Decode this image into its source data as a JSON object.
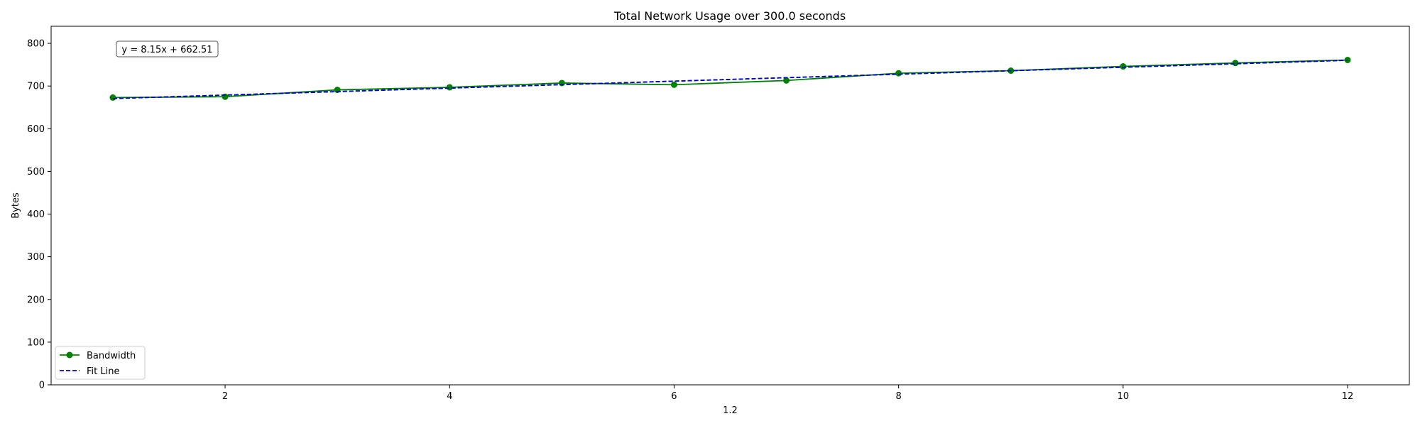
{
  "chart_data": {
    "type": "line",
    "title": "Total Network Usage over 300.0 seconds",
    "xlabel": "1.2",
    "ylabel": "Bytes",
    "xlim": [
      0.45,
      12.55
    ],
    "ylim": [
      0,
      840
    ],
    "xticks": [
      2,
      4,
      6,
      8,
      10,
      12
    ],
    "yticks": [
      0,
      100,
      200,
      300,
      400,
      500,
      600,
      700,
      800
    ],
    "grid": false,
    "legend": "lower-left",
    "annotation": "y = 8.15x + 662.51",
    "series": [
      {
        "name": "Bandwidth",
        "color": "#008000",
        "style": "solid",
        "marker": "circle",
        "x": [
          1,
          2,
          3,
          4,
          5,
          6,
          7,
          8,
          9,
          10,
          11,
          12
        ],
        "y": [
          673,
          675,
          691,
          697,
          707,
          703,
          713,
          730,
          736,
          746,
          754,
          761
        ]
      },
      {
        "name": "Fit Line",
        "color": "#0000cc",
        "style": "dashed",
        "marker": "none",
        "x": [
          1,
          12
        ],
        "y": [
          670.66,
          760.31
        ]
      }
    ]
  }
}
